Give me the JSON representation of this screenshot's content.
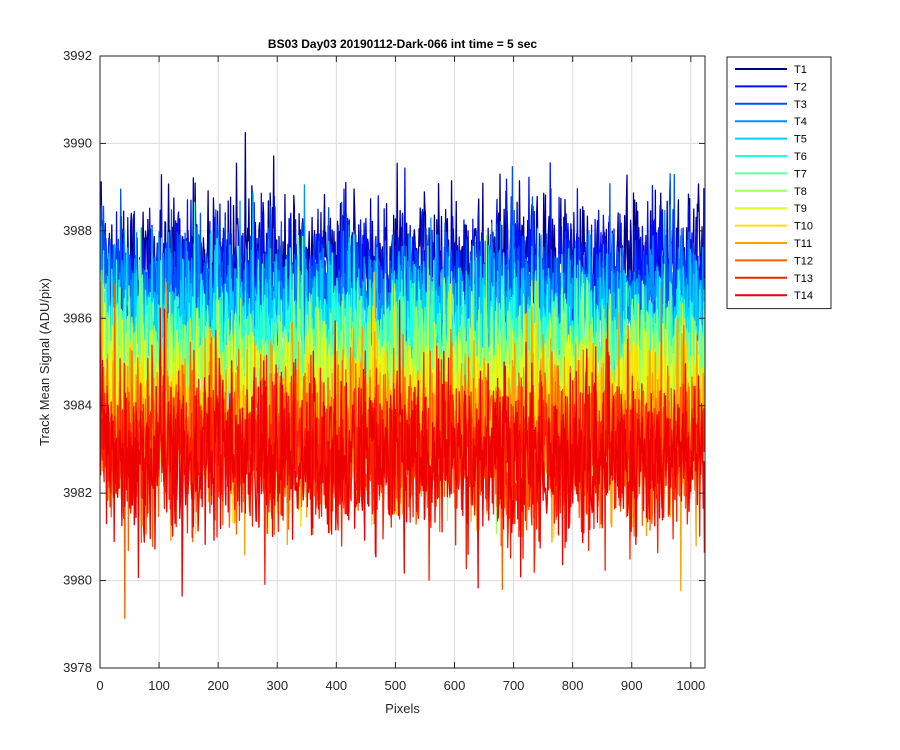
{
  "chart_data": {
    "type": "line",
    "title": "BS03 Day03 20190112-Dark-066 int time = 5 sec",
    "xlabel": "Pixels",
    "ylabel": "Track Mean Signal (ADU/pix)",
    "xlim": [
      0,
      1024
    ],
    "ylim": [
      3978,
      3992
    ],
    "xticks": [
      0,
      100,
      200,
      300,
      400,
      500,
      600,
      700,
      800,
      900,
      1000
    ],
    "yticks": [
      3978,
      3980,
      3982,
      3984,
      3986,
      3988,
      3990,
      3992
    ],
    "grid": true,
    "legend_position": "outside-top-right",
    "n_points": 1024,
    "series": [
      {
        "name": "T1",
        "color": "#00008f",
        "mean": 3987.3,
        "noise_sd": 0.75
      },
      {
        "name": "T2",
        "color": "#0010ff",
        "mean": 3987.0,
        "noise_sd": 0.75
      },
      {
        "name": "T3",
        "color": "#0050ff",
        "mean": 3986.6,
        "noise_sd": 0.75
      },
      {
        "name": "T4",
        "color": "#0090ff",
        "mean": 3986.2,
        "noise_sd": 0.75
      },
      {
        "name": "T5",
        "color": "#00d0ff",
        "mean": 3985.8,
        "noise_sd": 0.75
      },
      {
        "name": "T6",
        "color": "#20ffdf",
        "mean": 3985.4,
        "noise_sd": 0.8
      },
      {
        "name": "T7",
        "color": "#60ff9f",
        "mean": 3985.0,
        "noise_sd": 0.8
      },
      {
        "name": "T8",
        "color": "#9fff60",
        "mean": 3984.6,
        "noise_sd": 0.8
      },
      {
        "name": "T9",
        "color": "#dfff20",
        "mean": 3984.2,
        "noise_sd": 0.85
      },
      {
        "name": "T10",
        "color": "#ffdf00",
        "mean": 3983.8,
        "noise_sd": 0.85
      },
      {
        "name": "T11",
        "color": "#ff9f00",
        "mean": 3983.4,
        "noise_sd": 0.9
      },
      {
        "name": "T12",
        "color": "#ff6000",
        "mean": 3983.1,
        "noise_sd": 0.9
      },
      {
        "name": "T13",
        "color": "#ff2000",
        "mean": 3982.9,
        "noise_sd": 0.9
      },
      {
        "name": "T14",
        "color": "#ee0000",
        "mean": 3982.8,
        "noise_sd": 0.95
      }
    ]
  }
}
